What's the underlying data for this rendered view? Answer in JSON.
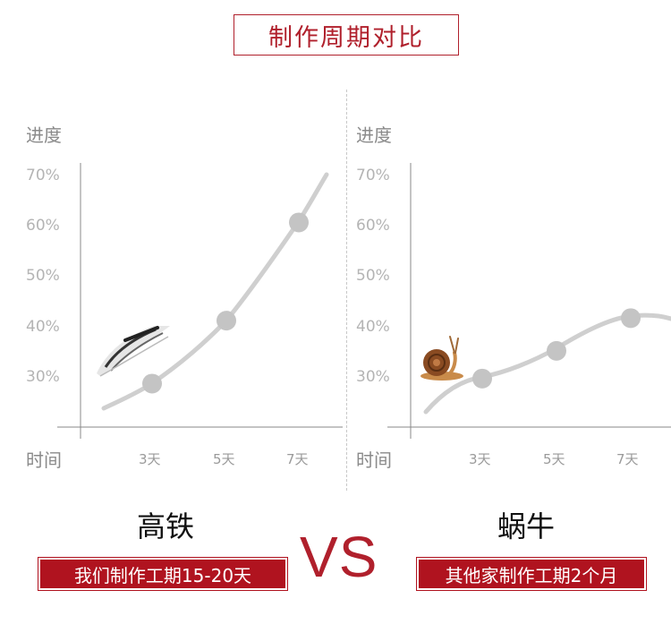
{
  "title": "制作周期对比",
  "vs_label": "VS",
  "colors": {
    "accent": "#b0202c",
    "curve": "#cfcfcf",
    "point": "#c4c4c4",
    "axis": "#888888"
  },
  "chart_data": [
    {
      "type": "line",
      "name": "高铁",
      "ylabel": "进度",
      "xlabel": "时间",
      "yticks": [
        "70%",
        "60%",
        "50%",
        "40%",
        "30%"
      ],
      "xticks": [
        "3天",
        "5天",
        "7天"
      ],
      "points": [
        {
          "x": 3,
          "y": 28.5
        },
        {
          "x": 5,
          "y": 41
        },
        {
          "x": 7,
          "y": 60.5
        }
      ],
      "tagline": "我们制作工期15-20天",
      "icon": "high-speed-train-icon"
    },
    {
      "type": "line",
      "name": "蜗牛",
      "ylabel": "进度",
      "xlabel": "时间",
      "yticks": [
        "70%",
        "60%",
        "50%",
        "40%",
        "30%"
      ],
      "xticks": [
        "3天",
        "5天",
        "7天"
      ],
      "points": [
        {
          "x": 3,
          "y": 29.5
        },
        {
          "x": 5,
          "y": 35
        },
        {
          "x": 7,
          "y": 41.5
        }
      ],
      "tagline": "其他家制作工期2个月",
      "icon": "snail-icon"
    }
  ]
}
